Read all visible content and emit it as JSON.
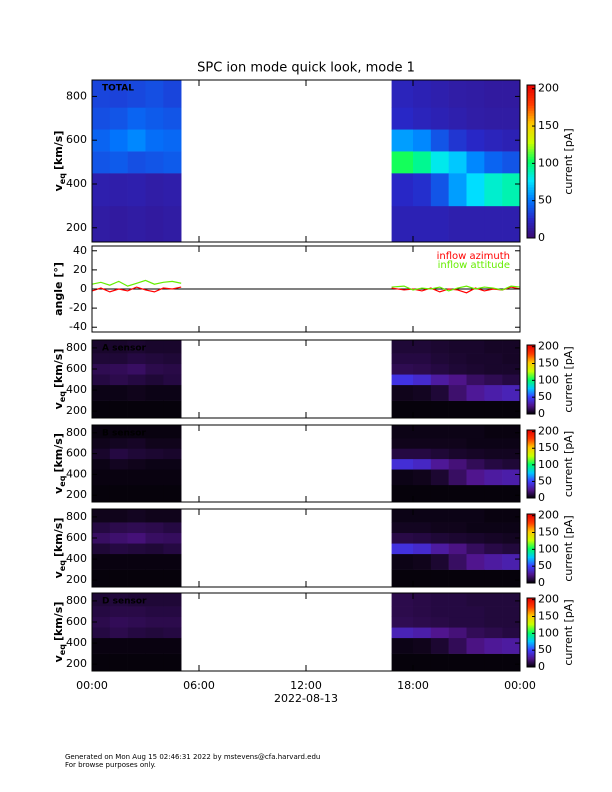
{
  "chart_data": [
    {
      "type": "heatmap",
      "title": "SPC ion mode quick look, mode 1",
      "annotation": "TOTAL",
      "y_label": "v",
      "y_label_sub": "eq",
      "y_label_unit": "[km/s]",
      "xlim": [
        0,
        24
      ],
      "ylim": [
        135,
        875
      ],
      "yticks": [
        200,
        400,
        600,
        800
      ],
      "x_edges": [
        0,
        1,
        2,
        3,
        4,
        5,
        16.8,
        18,
        19,
        20,
        21,
        22,
        23,
        24
      ],
      "y_edges": [
        135,
        300,
        450,
        550,
        650,
        750,
        875
      ],
      "z": [
        [
          15,
          18,
          40,
          45,
          38,
          35
        ],
        [
          14,
          17,
          42,
          50,
          40,
          34
        ],
        [
          15,
          18,
          38,
          55,
          45,
          36
        ],
        [
          14,
          16,
          40,
          48,
          42,
          38
        ],
        [
          15,
          17,
          42,
          46,
          40,
          35
        ],
        [
          null,
          null,
          null,
          null,
          null,
          null
        ],
        [
          20,
          25,
          105,
          60,
          25,
          22
        ],
        [
          20,
          28,
          95,
          55,
          22,
          20
        ],
        [
          20,
          40,
          80,
          40,
          20,
          18
        ],
        [
          18,
          60,
          70,
          30,
          18,
          16
        ],
        [
          18,
          75,
          55,
          25,
          16,
          15
        ],
        [
          18,
          85,
          45,
          22,
          15,
          14
        ],
        [
          18,
          90,
          40,
          20,
          15,
          14
        ]
      ],
      "clim": [
        0,
        205
      ],
      "cticks": [
        0,
        50,
        100,
        150,
        200
      ],
      "colorbar_label": "current [pA]",
      "colors": [
        "#3c0a6e",
        "#2828c8",
        "#0078ff",
        "#00e6ff",
        "#00ff64",
        "#c8ff00",
        "#ffc800",
        "#ff3c00",
        "#e60000"
      ]
    },
    {
      "type": "line",
      "y_label": "angle [°]",
      "xlim": [
        0,
        24
      ],
      "ylim": [
        -45,
        45
      ],
      "yticks": [
        -40,
        -20,
        0,
        20,
        40
      ],
      "x": [
        0,
        0.5,
        1,
        1.5,
        2,
        2.5,
        3,
        3.5,
        4,
        4.5,
        5,
        11,
        16.8,
        17.5,
        18,
        18.5,
        19,
        19.5,
        20,
        20.5,
        21,
        21.5,
        22,
        22.5,
        23,
        23.5,
        24
      ],
      "series": [
        {
          "name": "inflow azimuth",
          "color": "#ff0000",
          "values": [
            -2,
            1,
            -3,
            0,
            -2,
            2,
            -1,
            -3,
            1,
            0,
            2,
            null,
            1,
            -1,
            0,
            -2,
            1,
            -3,
            0,
            -1,
            -4,
            1,
            -2,
            0,
            -1,
            2,
            0
          ]
        },
        {
          "name": "inflow attitude",
          "color": "#66ee00",
          "values": [
            5,
            7,
            4,
            8,
            3,
            6,
            9,
            5,
            7,
            8,
            6,
            null,
            2,
            3,
            -1,
            1,
            0,
            2,
            -2,
            1,
            3,
            0,
            2,
            1,
            -1,
            3,
            2
          ]
        }
      ]
    },
    {
      "type": "heatmap",
      "annotation": "A sensor",
      "y_label": "v",
      "y_label_sub": "eq",
      "y_label_unit": "[km/s]",
      "xlim": [
        0,
        24
      ],
      "ylim": [
        135,
        875
      ],
      "yticks": [
        200,
        400,
        600,
        800
      ],
      "x_edges": [
        0,
        1,
        2,
        3,
        4,
        5,
        16.8,
        18,
        19,
        20,
        21,
        22,
        23,
        24
      ],
      "y_edges": [
        135,
        300,
        450,
        550,
        650,
        750,
        875
      ],
      "z": [
        [
          2,
          4,
          12,
          15,
          10,
          8
        ],
        [
          2,
          4,
          14,
          16,
          10,
          8
        ],
        [
          2,
          5,
          12,
          18,
          12,
          9
        ],
        [
          2,
          4,
          10,
          14,
          11,
          8
        ],
        [
          2,
          4,
          12,
          13,
          10,
          8
        ],
        [
          null,
          null,
          null,
          null,
          null,
          null
        ],
        [
          2,
          5,
          45,
          15,
          12,
          10
        ],
        [
          2,
          6,
          40,
          14,
          12,
          10
        ],
        [
          2,
          10,
          30,
          12,
          10,
          9
        ],
        [
          2,
          20,
          25,
          10,
          9,
          8
        ],
        [
          2,
          28,
          18,
          9,
          8,
          8
        ],
        [
          2,
          32,
          15,
          8,
          8,
          7
        ],
        [
          2,
          35,
          12,
          8,
          7,
          7
        ]
      ],
      "clim": [
        0,
        205
      ],
      "cticks": [
        0,
        50,
        100,
        150,
        200
      ],
      "colorbar_label": "current [pA]",
      "colors": [
        "#000000",
        "#50148c",
        "#3c3cff",
        "#00c8ff",
        "#00ff64",
        "#c8ff00",
        "#ffc800",
        "#ff3c00",
        "#e60000"
      ]
    },
    {
      "type": "heatmap",
      "annotation": "B sensor",
      "y_label": "v",
      "y_label_sub": "eq",
      "y_label_unit": "[km/s]",
      "xlim": [
        0,
        24
      ],
      "ylim": [
        135,
        875
      ],
      "yticks": [
        200,
        400,
        600,
        800
      ],
      "x_edges": [
        0,
        1,
        2,
        3,
        4,
        5,
        16.8,
        18,
        19,
        20,
        21,
        22,
        23,
        24
      ],
      "y_edges": [
        135,
        300,
        450,
        550,
        650,
        750,
        875
      ],
      "z": [
        [
          2,
          3,
          4,
          8,
          5,
          3
        ],
        [
          2,
          3,
          6,
          12,
          6,
          3
        ],
        [
          2,
          3,
          5,
          10,
          7,
          3
        ],
        [
          2,
          3,
          4,
          9,
          5,
          3
        ],
        [
          2,
          3,
          4,
          8,
          5,
          3
        ],
        [
          null,
          null,
          null,
          null,
          null,
          null
        ],
        [
          2,
          4,
          42,
          12,
          5,
          4
        ],
        [
          2,
          5,
          38,
          12,
          5,
          4
        ],
        [
          2,
          9,
          28,
          10,
          5,
          4
        ],
        [
          2,
          18,
          22,
          8,
          5,
          4
        ],
        [
          2,
          26,
          16,
          7,
          4,
          4
        ],
        [
          2,
          30,
          12,
          6,
          4,
          3
        ],
        [
          2,
          32,
          10,
          6,
          4,
          3
        ]
      ],
      "clim": [
        0,
        205
      ],
      "cticks": [
        0,
        50,
        100,
        150,
        200
      ],
      "colorbar_label": "current [pA]",
      "colors": [
        "#000000",
        "#50148c",
        "#3c3cff",
        "#00c8ff",
        "#00ff64",
        "#c8ff00",
        "#ffc800",
        "#ff3c00",
        "#e60000"
      ]
    },
    {
      "type": "heatmap",
      "y_label": "v",
      "y_label_sub": "eq",
      "y_label_unit": "[km/s]",
      "xlim": [
        0,
        24
      ],
      "ylim": [
        135,
        875
      ],
      "yticks": [
        200,
        400,
        600,
        800
      ],
      "x_edges": [
        0,
        1,
        2,
        3,
        4,
        5,
        16.8,
        18,
        19,
        20,
        21,
        22,
        23,
        24
      ],
      "y_edges": [
        135,
        300,
        450,
        550,
        650,
        750,
        875
      ],
      "z": [
        [
          2,
          3,
          10,
          18,
          12,
          5
        ],
        [
          2,
          3,
          12,
          20,
          14,
          5
        ],
        [
          2,
          3,
          11,
          22,
          15,
          6
        ],
        [
          2,
          3,
          10,
          18,
          14,
          5
        ],
        [
          2,
          3,
          12,
          17,
          12,
          5
        ],
        [
          null,
          null,
          null,
          null,
          null,
          null
        ],
        [
          2,
          4,
          44,
          13,
          6,
          4
        ],
        [
          2,
          5,
          40,
          12,
          6,
          4
        ],
        [
          2,
          9,
          30,
          10,
          5,
          4
        ],
        [
          2,
          18,
          24,
          9,
          5,
          4
        ],
        [
          2,
          26,
          17,
          8,
          4,
          4
        ],
        [
          2,
          30,
          13,
          7,
          4,
          3
        ],
        [
          2,
          33,
          11,
          6,
          4,
          3
        ]
      ],
      "clim": [
        0,
        205
      ],
      "cticks": [
        0,
        50,
        100,
        150,
        200
      ],
      "colorbar_label": "current [pA]",
      "colors": [
        "#000000",
        "#50148c",
        "#3c3cff",
        "#00c8ff",
        "#00ff64",
        "#c8ff00",
        "#ffc800",
        "#ff3c00",
        "#e60000"
      ]
    },
    {
      "type": "heatmap",
      "annotation": "D sensor",
      "y_label": "v",
      "y_label_sub": "eq",
      "y_label_unit": "[km/s]",
      "xlim": [
        0,
        24
      ],
      "ylim": [
        135,
        875
      ],
      "yticks": [
        200,
        400,
        600,
        800
      ],
      "x_edges": [
        0,
        1,
        2,
        3,
        4,
        5,
        16.8,
        18,
        19,
        20,
        21,
        22,
        23,
        24
      ],
      "y_edges": [
        135,
        300,
        450,
        550,
        650,
        750,
        875
      ],
      "z": [
        [
          2,
          3,
          12,
          14,
          12,
          10
        ],
        [
          2,
          3,
          14,
          16,
          13,
          11
        ],
        [
          2,
          3,
          12,
          15,
          13,
          10
        ],
        [
          2,
          3,
          11,
          14,
          12,
          10
        ],
        [
          2,
          3,
          12,
          14,
          12,
          10
        ],
        [
          null,
          null,
          null,
          null,
          null,
          null
        ],
        [
          2,
          4,
          35,
          15,
          14,
          14
        ],
        [
          2,
          5,
          32,
          14,
          13,
          13
        ],
        [
          2,
          9,
          26,
          13,
          12,
          12
        ],
        [
          2,
          16,
          22,
          12,
          12,
          12
        ],
        [
          2,
          24,
          16,
          12,
          12,
          11
        ],
        [
          2,
          28,
          14,
          11,
          11,
          11
        ],
        [
          2,
          30,
          12,
          11,
          11,
          11
        ]
      ],
      "clim": [
        0,
        205
      ],
      "cticks": [
        0,
        50,
        100,
        150,
        200
      ],
      "colorbar_label": "current [pA]",
      "colors": [
        "#000000",
        "#50148c",
        "#3c3cff",
        "#00c8ff",
        "#00ff64",
        "#c8ff00",
        "#ffc800",
        "#ff3c00",
        "#e60000"
      ],
      "xticks": [
        {
          "value": 0,
          "label": "00:00"
        },
        {
          "value": 6,
          "label": "06:00"
        },
        {
          "value": 12,
          "label": "12:00"
        },
        {
          "value": 18,
          "label": "18:00"
        },
        {
          "value": 24,
          "label": "00:00"
        }
      ],
      "x_label": "2022-08-13"
    }
  ],
  "footer": {
    "line1": "Generated on Mon Aug 15 02:46:31 2022 by mstevens@cfa.harvard.edu",
    "line2": "For browse purposes only."
  }
}
